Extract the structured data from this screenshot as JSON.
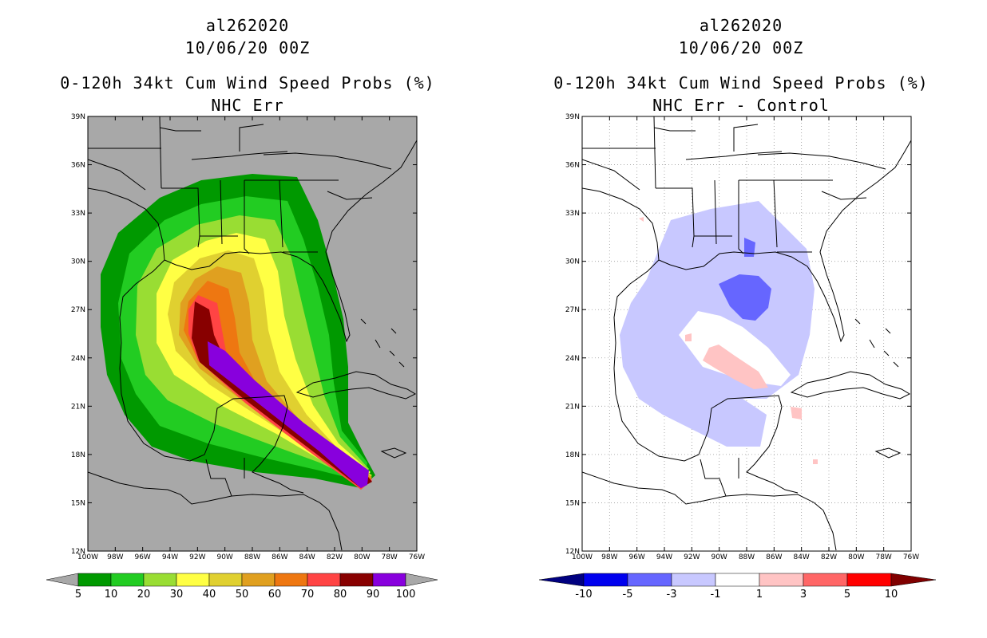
{
  "left_panel": {
    "storm_id": "al262020",
    "datetime": "10/06/20 00Z",
    "product": "0-120h 34kt Cum Wind Speed Probs (%)",
    "subtitle": "NHC Err",
    "colorbar": {
      "labels": [
        "5",
        "10",
        "20",
        "30",
        "40",
        "50",
        "60",
        "70",
        "80",
        "90",
        "100"
      ],
      "colors": [
        "#009900",
        "#22cc22",
        "#99dd33",
        "#ffff44",
        "#e0d030",
        "#e0a020",
        "#ee7711",
        "#ff4444",
        "#880000",
        "#8800dd"
      ]
    }
  },
  "right_panel": {
    "storm_id": "al262020",
    "datetime": "10/06/20 00Z",
    "product": "0-120h 34kt Cum Wind Speed Probs (%)",
    "subtitle": "NHC Err - Control",
    "colorbar": {
      "labels": [
        "-10",
        "-5",
        "-3",
        "-1",
        "1",
        "3",
        "5",
        "10"
      ],
      "colors": [
        "#0000ee",
        "#6666ff",
        "#c8c8ff",
        "#ffffff",
        "#ffc4c4",
        "#ff6666",
        "#ff0000"
      ],
      "end_low": "#000080",
      "end_high": "#800000"
    }
  },
  "axes": {
    "lat_labels": [
      "39N",
      "36N",
      "33N",
      "30N",
      "27N",
      "24N",
      "21N",
      "18N",
      "15N",
      "12N"
    ],
    "lon_labels": [
      "100W",
      "98W",
      "96W",
      "94W",
      "92W",
      "90W",
      "88W",
      "86W",
      "84W",
      "82W",
      "80W",
      "78W",
      "76W"
    ]
  }
}
